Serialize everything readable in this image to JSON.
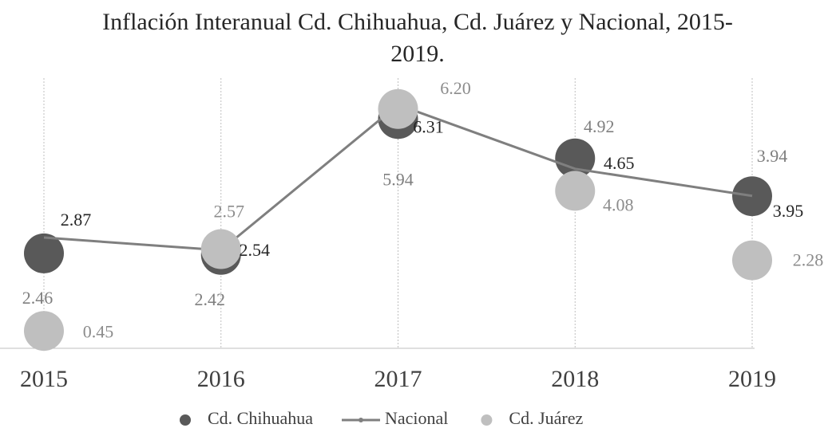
{
  "chart_data": {
    "type": "line",
    "title": "Inflación Interanual Cd. Chihuahua, Cd. Juárez y Nacional, 2015-2019.",
    "categories": [
      "2015",
      "2016",
      "2017",
      "2018",
      "2019"
    ],
    "ylim": [
      0,
      7
    ],
    "legend": "bottom",
    "series": [
      {
        "name": "Cd. Chihuahua",
        "color": "#595959",
        "marker": "circle",
        "values": [
          2.46,
          2.42,
          5.94,
          4.92,
          3.94
        ],
        "label_color": "#7f7f7f"
      },
      {
        "name": "Nacional",
        "color": "#7f7f7f",
        "marker": "line",
        "values": [
          2.87,
          2.54,
          6.31,
          4.65,
          3.95
        ],
        "label_color": "#262626"
      },
      {
        "name": "Cd. Juárez",
        "color": "#bfbfbf",
        "marker": "circle",
        "values": [
          0.45,
          2.57,
          6.2,
          4.08,
          2.28
        ],
        "value_labels": [
          "0.45",
          "2.57",
          "6.20",
          "4.08",
          "2.28"
        ],
        "label_color": "#8c8c8c"
      }
    ]
  }
}
